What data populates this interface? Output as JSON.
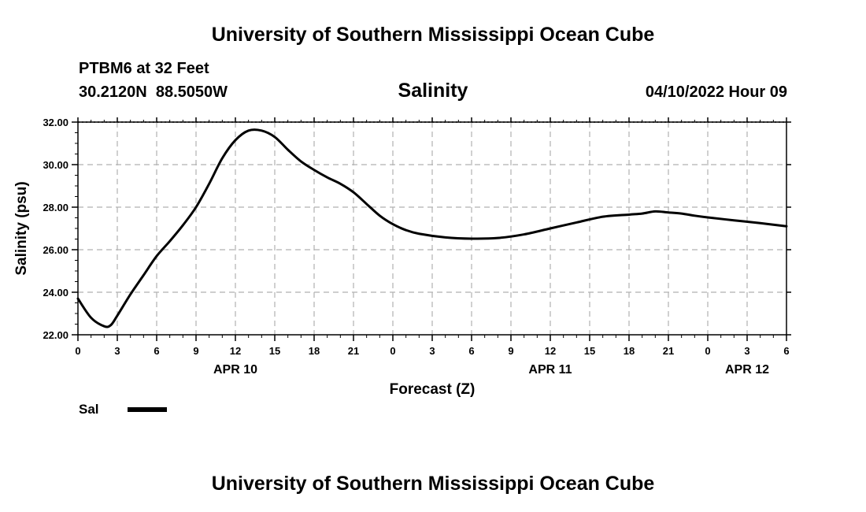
{
  "header": {
    "title": "University of Southern Mississippi Ocean Cube",
    "station": "PTBM6 at 32 Feet",
    "coords": "30.2120N  88.5050W",
    "variable": "Salinity",
    "datetime": "04/10/2022 Hour 09"
  },
  "footer": {
    "title": "University of Southern Mississippi Ocean Cube"
  },
  "legend": {
    "label": "Sal"
  },
  "colors": {
    "line": "#000000",
    "grid": "#b0b0b0"
  },
  "chart_data": {
    "type": "line",
    "title": "Salinity",
    "xlabel": "Forecast (Z)",
    "ylabel": "Salinity (psu)",
    "ylim": [
      22.0,
      32.0
    ],
    "xlim": [
      0,
      54
    ],
    "yticks": [
      "22.00",
      "24.00",
      "26.00",
      "28.00",
      "30.00",
      "32.00"
    ],
    "y_tick_values": [
      22,
      24,
      26,
      28,
      30,
      32
    ],
    "xticks": [
      "0",
      "3",
      "6",
      "9",
      "12",
      "15",
      "18",
      "21",
      "0",
      "3",
      "6",
      "9",
      "12",
      "15",
      "18",
      "21",
      "0",
      "3",
      "6"
    ],
    "date_labels": [
      {
        "text": "APR 10",
        "hour": 12
      },
      {
        "text": "APR 11",
        "hour": 36
      },
      {
        "text": "APR 12",
        "hour": 51
      }
    ],
    "grid": true,
    "series": [
      {
        "name": "Sal",
        "x": [
          0,
          1,
          2,
          2.5,
          3,
          4,
          5,
          6,
          7,
          8,
          9,
          10,
          11,
          12,
          13,
          14,
          15,
          16,
          17,
          18,
          19,
          20,
          21,
          22,
          23,
          24,
          25,
          26,
          28,
          30,
          32,
          34,
          36,
          38,
          40,
          42,
          43,
          44,
          45,
          46,
          47,
          48,
          50,
          52,
          54
        ],
        "values": [
          23.7,
          22.8,
          22.4,
          22.45,
          22.9,
          23.9,
          24.8,
          25.7,
          26.4,
          27.15,
          28.0,
          29.1,
          30.3,
          31.15,
          31.6,
          31.6,
          31.3,
          30.7,
          30.15,
          29.75,
          29.4,
          29.1,
          28.7,
          28.15,
          27.6,
          27.2,
          26.92,
          26.75,
          26.58,
          26.52,
          26.55,
          26.72,
          27.0,
          27.28,
          27.55,
          27.65,
          27.7,
          27.8,
          27.75,
          27.7,
          27.6,
          27.52,
          27.38,
          27.25,
          27.1
        ]
      }
    ]
  }
}
